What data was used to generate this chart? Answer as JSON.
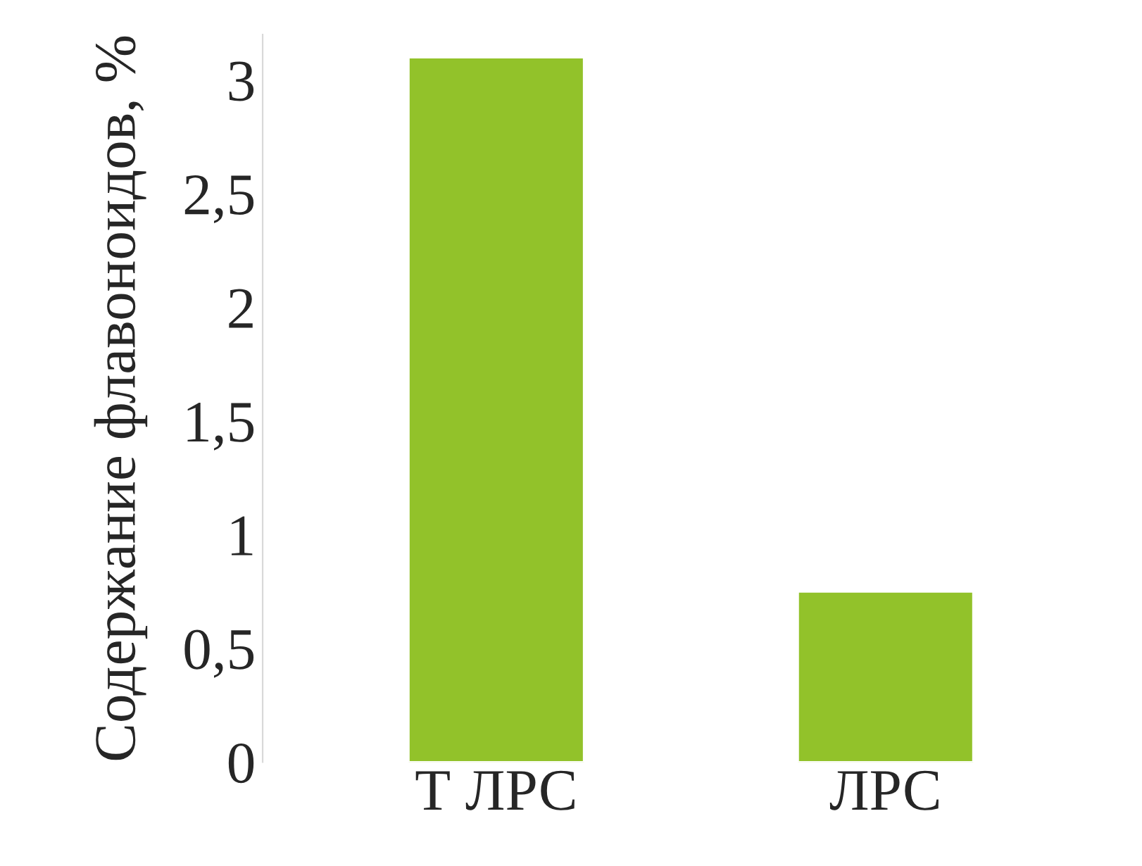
{
  "chart_data": {
    "type": "bar",
    "ylabel": "Содержание флавоноидов, %",
    "categories": [
      "Т ЛРС",
      "ЛРС"
    ],
    "values": [
      3.1,
      0.75
    ],
    "color": "#92c22a",
    "ylim": [
      0,
      3.2
    ],
    "yticks": [
      0,
      {
        "value": 0.5,
        "label": "0,5"
      },
      1,
      {
        "value": 1.5,
        "label": "1,5"
      },
      2,
      {
        "value": 2.5,
        "label": "2,5"
      },
      3
    ],
    "grid": false,
    "legend": false
  }
}
